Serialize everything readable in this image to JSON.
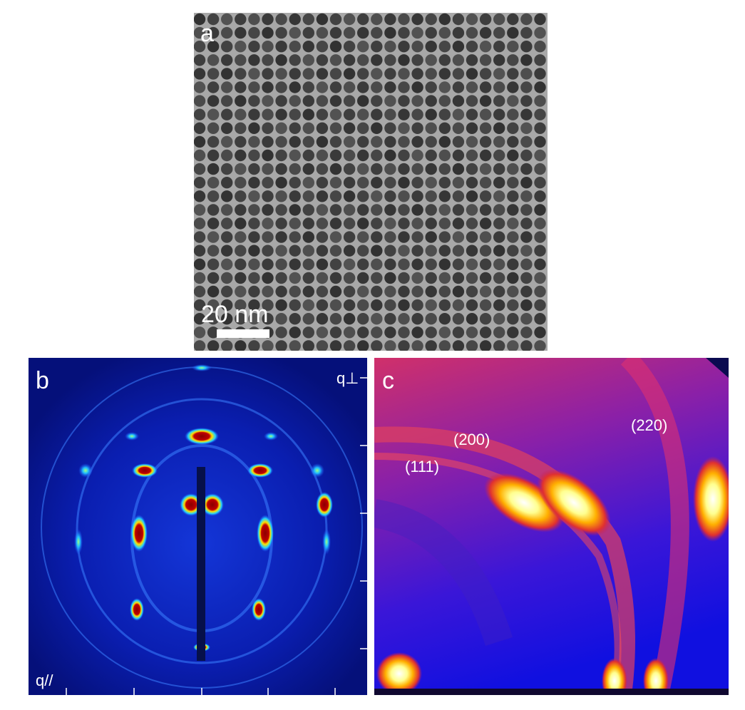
{
  "panels": [
    {
      "label": "a",
      "scale_bar": "20 nm"
    },
    {
      "label": "b",
      "axis_labels": [
        "q⊥",
        "q//"
      ]
    },
    {
      "label": "c",
      "peaks": [
        "(111)",
        "(200)",
        "(220)"
      ]
    }
  ]
}
